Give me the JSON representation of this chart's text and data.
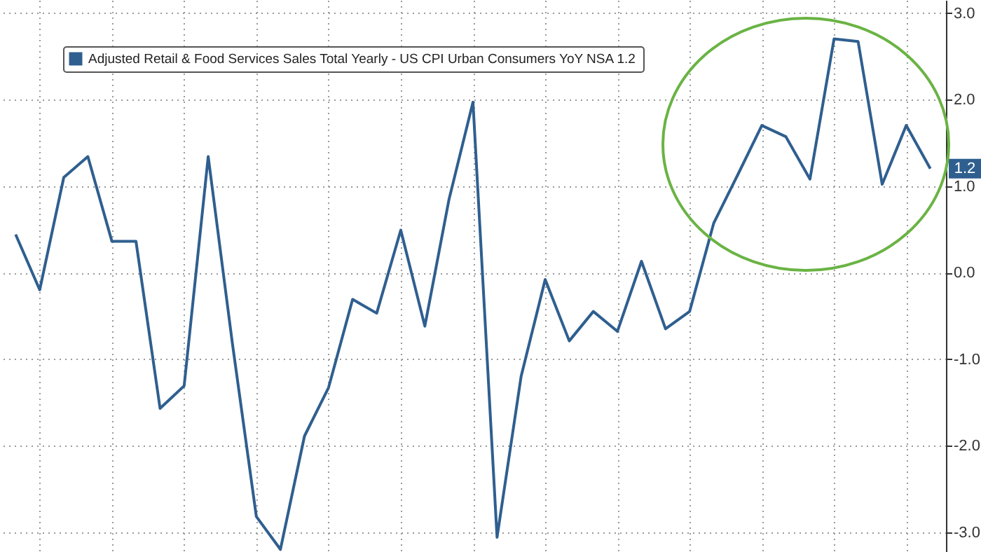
{
  "chart_data": {
    "type": "line",
    "categories": [
      null,
      null,
      null,
      null,
      null,
      null,
      null,
      null,
      null,
      null,
      null,
      null,
      null,
      null,
      null,
      null,
      null,
      null,
      null,
      null,
      null,
      null,
      null,
      null,
      null,
      null,
      null,
      null,
      null,
      null,
      null,
      null,
      null,
      null,
      null,
      null,
      null,
      null,
      null
    ],
    "series": [
      {
        "name": "Adjusted Retail & Food Services Sales Total Yearly - US CPI Urban Consumers YoY NSA 1.2",
        "color": "#2f5f8f",
        "values": [
          0.44,
          -0.2,
          1.1,
          1.34,
          0.36,
          0.36,
          -1.57,
          -1.31,
          1.34,
          -0.81,
          -2.82,
          -3.2,
          -1.89,
          -1.33,
          -0.31,
          -0.47,
          0.49,
          -0.62,
          0.84,
          1.97,
          -3.06,
          -1.2,
          -0.08,
          -0.79,
          -0.45,
          -0.68,
          0.13,
          -0.65,
          -0.45,
          0.57,
          1.13,
          1.7,
          1.57,
          1.08,
          2.7,
          2.67,
          1.02,
          1.7,
          1.2
        ],
        "value_labels": [
          null,
          null,
          null,
          null,
          null,
          null,
          null,
          null,
          null,
          null,
          null,
          null,
          null,
          null,
          null,
          null,
          null,
          null,
          null,
          null,
          null,
          null,
          null,
          null,
          null,
          null,
          null,
          null,
          null,
          null,
          null,
          null,
          null,
          null,
          null,
          null,
          null,
          null,
          "1.2"
        ]
      }
    ],
    "ylim": [
      -3.23,
      3.15
    ],
    "yticks": [
      {
        "value": 3,
        "label": "3.0"
      },
      {
        "value": 2,
        "label": "2.0"
      },
      {
        "value": 1,
        "label": "1.0"
      },
      {
        "value": 0,
        "label": "0.0"
      },
      {
        "value": -1,
        "label": "-1.0"
      },
      {
        "value": -2,
        "label": "-2.0"
      },
      {
        "value": -3,
        "label": "-3.0"
      }
    ],
    "grid": true,
    "legend": "top left",
    "marker": "none",
    "line_style": "solid"
  }
}
